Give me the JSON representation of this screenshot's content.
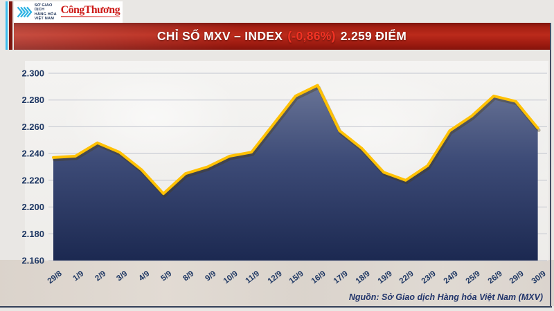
{
  "header": {
    "logo": {
      "org_lines": [
        "SỞ GIAO DỊCH",
        "HÀNG HÓA",
        "VIỆT NAM"
      ],
      "brand": "CôngThương"
    },
    "banner": {
      "title_prefix": "CHỈ SỐ MXV – INDEX",
      "change": "(-0,86%)",
      "value_text": "2.259 ĐIỂM",
      "banner_color": "#a61c12",
      "change_color": "#f23324"
    }
  },
  "chart_data": {
    "type": "area",
    "title": "CHỈ SỐ MXV – INDEX (-0,86%) 2.259 ĐIỂM",
    "unit": "điểm",
    "x_labels": [
      "29/8",
      "1/9",
      "2/9",
      "3/9",
      "4/9",
      "5/9",
      "8/9",
      "9/9",
      "10/9",
      "11/9",
      "12/9",
      "15/9",
      "16/9",
      "17/9",
      "18/9",
      "19/9",
      "22/9",
      "23/9",
      "24/9",
      "25/9",
      "26/9",
      "29/9",
      "30/9"
    ],
    "values": [
      2237,
      2238,
      2248,
      2241,
      2228,
      2210,
      2225,
      2230,
      2238,
      2241,
      2262,
      2283,
      2291,
      2257,
      2244,
      2226,
      2220,
      2231,
      2257,
      2268,
      2283,
      2279,
      2259
    ],
    "y_tick_labels": [
      "2.300",
      "2.280",
      "2.260",
      "2.240",
      "2.220",
      "2.200",
      "2.180",
      "2.160"
    ],
    "y_tick_values": [
      2300,
      2280,
      2260,
      2240,
      2220,
      2200,
      2180,
      2160
    ],
    "ylim": [
      2160,
      2300
    ],
    "grid": true,
    "legend": false,
    "line_color": "#ffc104",
    "area_top_color": "#6d7899",
    "area_bottom_color": "#1b2850",
    "label_color": "#1f3864"
  },
  "footer": {
    "source": "Nguồn: Sở Giao dịch Hàng hóa Việt Nam (MXV)"
  }
}
